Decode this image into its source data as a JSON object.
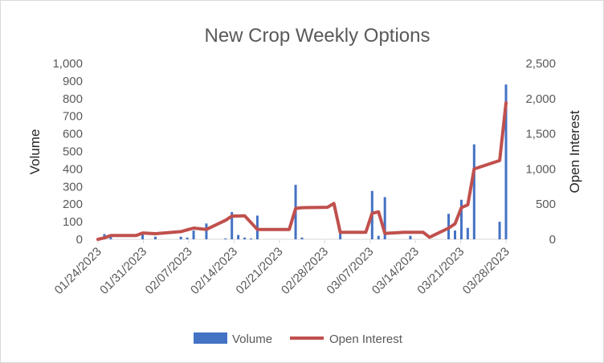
{
  "chart_data": {
    "type": "bar",
    "title": "New Crop Weekly Options",
    "ylabel": "Volume",
    "y2label": "Open Interest",
    "xlabel": "",
    "ylim": [
      0,
      1000
    ],
    "y2lim": [
      0,
      2500
    ],
    "yticks": [
      "0",
      "100",
      "200",
      "300",
      "400",
      "500",
      "600",
      "700",
      "800",
      "900",
      "1,000"
    ],
    "y2ticks": [
      "0",
      "500",
      "1,000",
      "1,500",
      "2,000",
      "2,500"
    ],
    "x_tick_labels": [
      "01/24/2023",
      "01/31/2023",
      "02/07/2023",
      "02/14/2023",
      "02/21/2023",
      "02/28/2023",
      "03/07/2023",
      "03/14/2023",
      "03/21/2023",
      "03/28/2023"
    ],
    "x_start": "2023-01-24",
    "x_end": "2023-03-29",
    "series": [
      {
        "name": "Volume",
        "kind": "bar",
        "axis": "left",
        "color": "#4472C4",
        "points": [
          {
            "date": "2023-01-25",
            "value": 30
          },
          {
            "date": "2023-01-26",
            "value": 20
          },
          {
            "date": "2023-01-31",
            "value": 35
          },
          {
            "date": "2023-02-02",
            "value": 15
          },
          {
            "date": "2023-02-06",
            "value": 15
          },
          {
            "date": "2023-02-07",
            "value": 10
          },
          {
            "date": "2023-02-08",
            "value": 50
          },
          {
            "date": "2023-02-10",
            "value": 90
          },
          {
            "date": "2023-02-13",
            "value": 5
          },
          {
            "date": "2023-02-14",
            "value": 155
          },
          {
            "date": "2023-02-15",
            "value": 25
          },
          {
            "date": "2023-02-16",
            "value": 10
          },
          {
            "date": "2023-02-17",
            "value": 5
          },
          {
            "date": "2023-02-18",
            "value": 135
          },
          {
            "date": "2023-02-24",
            "value": 310
          },
          {
            "date": "2023-02-25",
            "value": 10
          },
          {
            "date": "2023-03-03",
            "value": 50
          },
          {
            "date": "2023-03-08",
            "value": 275
          },
          {
            "date": "2023-03-09",
            "value": 20
          },
          {
            "date": "2023-03-10",
            "value": 240
          },
          {
            "date": "2023-03-14",
            "value": 20
          },
          {
            "date": "2023-03-20",
            "value": 145
          },
          {
            "date": "2023-03-21",
            "value": 50
          },
          {
            "date": "2023-03-22",
            "value": 225
          },
          {
            "date": "2023-03-23",
            "value": 65
          },
          {
            "date": "2023-03-24",
            "value": 540
          },
          {
            "date": "2023-03-28",
            "value": 100
          },
          {
            "date": "2023-03-29",
            "value": 880
          }
        ]
      },
      {
        "name": "Open Interest",
        "kind": "line",
        "axis": "right",
        "color": "#C0504D",
        "points": [
          {
            "date": "2023-01-24",
            "value": 0
          },
          {
            "date": "2023-01-25",
            "value": 20
          },
          {
            "date": "2023-01-26",
            "value": 55
          },
          {
            "date": "2023-01-30",
            "value": 55
          },
          {
            "date": "2023-01-31",
            "value": 90
          },
          {
            "date": "2023-02-02",
            "value": 80
          },
          {
            "date": "2023-02-06",
            "value": 110
          },
          {
            "date": "2023-02-07",
            "value": 135
          },
          {
            "date": "2023-02-08",
            "value": 160
          },
          {
            "date": "2023-02-10",
            "value": 140
          },
          {
            "date": "2023-02-13",
            "value": 270
          },
          {
            "date": "2023-02-14",
            "value": 330
          },
          {
            "date": "2023-02-16",
            "value": 335
          },
          {
            "date": "2023-02-18",
            "value": 140
          },
          {
            "date": "2023-02-23",
            "value": 140
          },
          {
            "date": "2023-02-24",
            "value": 440
          },
          {
            "date": "2023-02-25",
            "value": 450
          },
          {
            "date": "2023-03-01",
            "value": 455
          },
          {
            "date": "2023-03-02",
            "value": 510
          },
          {
            "date": "2023-03-03",
            "value": 100
          },
          {
            "date": "2023-03-07",
            "value": 100
          },
          {
            "date": "2023-03-08",
            "value": 370
          },
          {
            "date": "2023-03-09",
            "value": 390
          },
          {
            "date": "2023-03-10",
            "value": 85
          },
          {
            "date": "2023-03-13",
            "value": 100
          },
          {
            "date": "2023-03-16",
            "value": 100
          },
          {
            "date": "2023-03-17",
            "value": 30
          },
          {
            "date": "2023-03-20",
            "value": 160
          },
          {
            "date": "2023-03-21",
            "value": 220
          },
          {
            "date": "2023-03-22",
            "value": 450
          },
          {
            "date": "2023-03-23",
            "value": 490
          },
          {
            "date": "2023-03-24",
            "value": 1000
          },
          {
            "date": "2023-03-28",
            "value": 1120
          },
          {
            "date": "2023-03-29",
            "value": 1940
          }
        ]
      }
    ],
    "grid": false,
    "legend_position": "bottom"
  }
}
